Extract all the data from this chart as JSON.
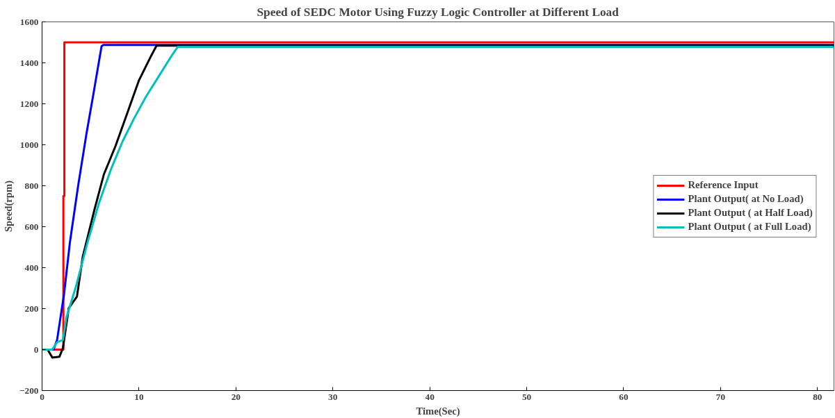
{
  "chart_data": {
    "type": "line",
    "title": "Speed of SEDC Motor Using Fuzzy Logic Controller at Different Load",
    "xlabel": "Time(Sec)",
    "ylabel": "Speed(rpm)",
    "xlim": [
      0,
      81.7
    ],
    "ylim": [
      -200,
      1600
    ],
    "xticks": [
      0,
      10,
      20,
      30,
      40,
      50,
      60,
      70,
      80
    ],
    "yticks": [
      -200,
      0,
      200,
      400,
      600,
      800,
      1000,
      1200,
      1400,
      1600
    ],
    "grid": false,
    "legend": "right",
    "line_style": "solid",
    "marker": "none",
    "series": [
      {
        "name": "Reference Input",
        "color": "#ff0000",
        "x": [
          0,
          2.2,
          2.2,
          2.3,
          2.3,
          81.7
        ],
        "values": [
          0,
          0,
          750,
          750,
          1500,
          1500
        ]
      },
      {
        "name": "Plant Output( at No Load)",
        "color": "#0000ff",
        "x": [
          0,
          1.18,
          1.55,
          2.27,
          2.87,
          3.72,
          4.57,
          5.29,
          6.14,
          6.33,
          81.7
        ],
        "values": [
          0,
          0,
          47,
          271,
          523,
          799,
          1051,
          1246,
          1481,
          1487,
          1487
        ]
      },
      {
        "name": "Plant Output ( at Half Load)",
        "color": "#000000",
        "x": [
          0,
          0.58,
          1.06,
          1.79,
          2.15,
          2.75,
          3.6,
          4.2,
          5.41,
          6.38,
          7.58,
          8.79,
          10,
          11.21,
          11.81,
          81.7
        ],
        "values": [
          0,
          0,
          -39,
          -35,
          7,
          202,
          259,
          454,
          684,
          856,
          994,
          1154,
          1315,
          1430,
          1484,
          1484
        ]
      },
      {
        "name": "Plant Output ( at Full Load)",
        "color": "#00bfbf",
        "x": [
          0,
          1.06,
          1.55,
          2.15,
          2.51,
          3.48,
          4.69,
          5.89,
          7.1,
          8.31,
          9.52,
          10.72,
          11.93,
          13.14,
          13.99,
          81.7
        ],
        "values": [
          0,
          0,
          36,
          47,
          156,
          305,
          523,
          718,
          879,
          1017,
          1131,
          1235,
          1326,
          1418,
          1478,
          1478
        ]
      }
    ]
  }
}
